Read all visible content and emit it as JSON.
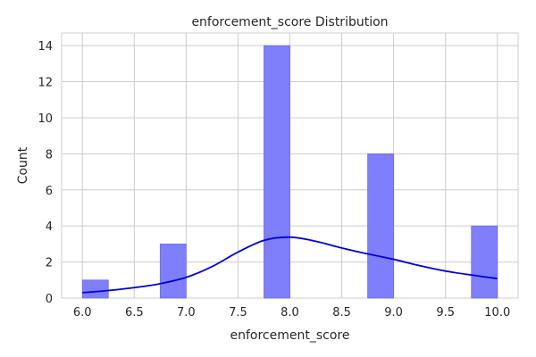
{
  "chart_data": {
    "type": "bar",
    "title": "enforcement_score Distribution",
    "xlabel": "enforcement_score",
    "ylabel": "Count",
    "xlim": [
      5.8,
      10.2
    ],
    "ylim": [
      0,
      14.7
    ],
    "xticks": [
      "6.0",
      "6.5",
      "7.0",
      "7.5",
      "8.0",
      "8.5",
      "9.0",
      "9.5",
      "10.0"
    ],
    "yticks": [
      "0",
      "2",
      "4",
      "6",
      "8",
      "10",
      "12",
      "14"
    ],
    "grid": true,
    "bar_color": "#7f7ffb",
    "bar_edge_color": "#6a6af0",
    "kde_color": "#0000dd",
    "bins": [
      {
        "x0": 6.0,
        "x1": 6.25,
        "count": 1
      },
      {
        "x0": 6.75,
        "x1": 7.0,
        "count": 3
      },
      {
        "x0": 7.75,
        "x1": 8.0,
        "count": 14
      },
      {
        "x0": 8.75,
        "x1": 9.0,
        "count": 8
      },
      {
        "x0": 9.75,
        "x1": 10.0,
        "count": 4
      }
    ],
    "kde": {
      "x": [
        6.0,
        6.25,
        6.5,
        6.75,
        7.0,
        7.25,
        7.5,
        7.75,
        8.0,
        8.25,
        8.5,
        8.75,
        9.0,
        9.25,
        9.5,
        9.75,
        10.0
      ],
      "y": [
        0.3,
        0.42,
        0.58,
        0.8,
        1.15,
        1.75,
        2.55,
        3.2,
        3.38,
        3.15,
        2.78,
        2.45,
        2.15,
        1.8,
        1.5,
        1.28,
        1.08
      ]
    }
  }
}
